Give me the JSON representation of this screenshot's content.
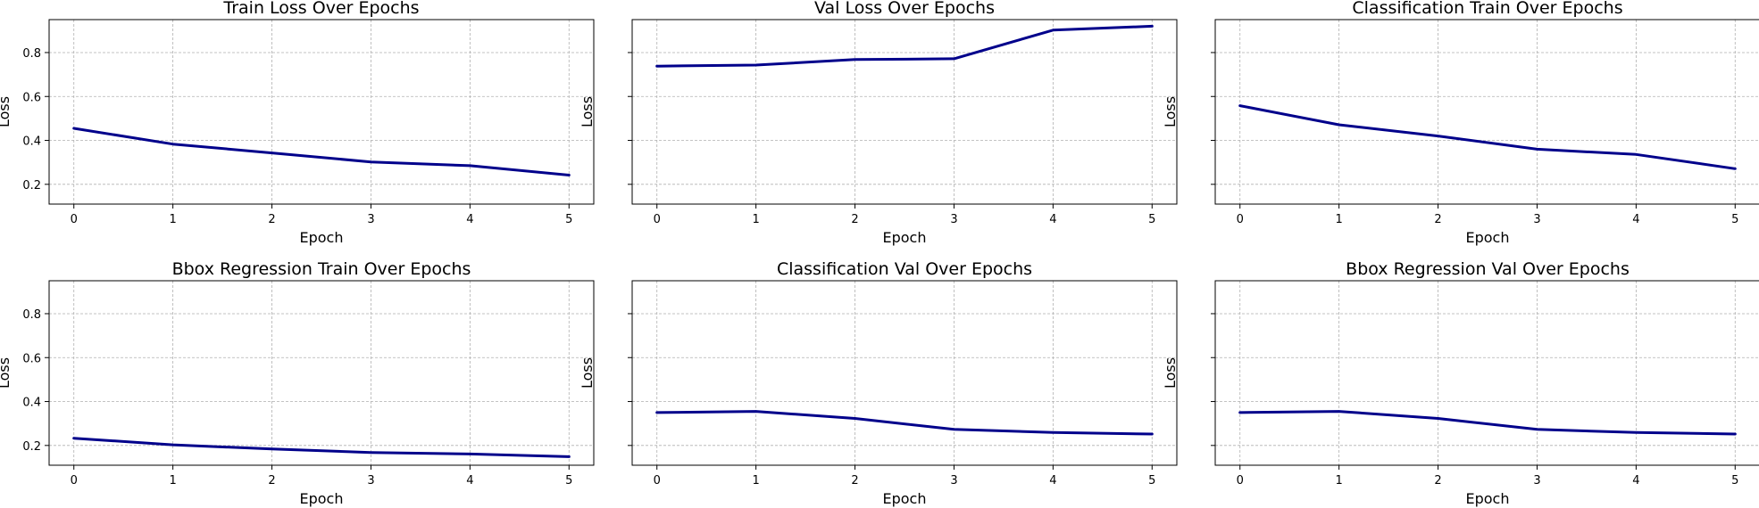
{
  "colors": {
    "line": "#00008b",
    "grid": "#b0b0b0",
    "axes": "#000000"
  },
  "chart_data": [
    {
      "type": "line",
      "title": "Train Loss Over Epochs",
      "xlabel": "Epoch",
      "ylabel": "Loss",
      "x": [
        0,
        1,
        2,
        3,
        4,
        5
      ],
      "values": [
        0.455,
        0.383,
        0.343,
        0.302,
        0.285,
        0.242
      ],
      "xticks": [
        "0",
        "1",
        "2",
        "3",
        "4",
        "5"
      ],
      "yticks": [
        "0.2",
        "0.4",
        "0.6",
        "0.8"
      ],
      "ylim": [
        0.11,
        0.95
      ],
      "xlim": [
        -0.25,
        5.25
      ],
      "grid": true
    },
    {
      "type": "line",
      "title": "Val Loss Over Epochs",
      "xlabel": "Epoch",
      "ylabel": "Loss",
      "x": [
        0,
        1,
        2,
        3,
        4,
        5
      ],
      "values": [
        0.738,
        0.743,
        0.768,
        0.772,
        0.902,
        0.92
      ],
      "xticks": [
        "0",
        "1",
        "2",
        "3",
        "4",
        "5"
      ],
      "yticks": [],
      "ylim": [
        0.11,
        0.95
      ],
      "xlim": [
        -0.25,
        5.25
      ],
      "grid": true
    },
    {
      "type": "line",
      "title": "Classification Train Over Epochs",
      "xlabel": "Epoch",
      "ylabel": "Loss",
      "x": [
        0,
        1,
        2,
        3,
        4,
        5
      ],
      "values": [
        0.558,
        0.471,
        0.42,
        0.36,
        0.336,
        0.271
      ],
      "xticks": [
        "0",
        "1",
        "2",
        "3",
        "4",
        "5"
      ],
      "yticks": [],
      "ylim": [
        0.11,
        0.95
      ],
      "xlim": [
        -0.25,
        5.25
      ],
      "grid": true
    },
    {
      "type": "line",
      "title": "Bbox Regression Train Over Epochs",
      "xlabel": "Epoch",
      "ylabel": "Loss",
      "x": [
        0,
        1,
        2,
        3,
        4,
        5
      ],
      "values": [
        0.233,
        0.203,
        0.184,
        0.168,
        0.161,
        0.149
      ],
      "xticks": [
        "0",
        "1",
        "2",
        "3",
        "4",
        "5"
      ],
      "yticks": [
        "0.2",
        "0.4",
        "0.6",
        "0.8"
      ],
      "ylim": [
        0.11,
        0.95
      ],
      "xlim": [
        -0.25,
        5.25
      ],
      "grid": true
    },
    {
      "type": "line",
      "title": "Classification Val Over Epochs",
      "xlabel": "Epoch",
      "ylabel": "Loss",
      "x": [
        0,
        1,
        2,
        3,
        4,
        5
      ],
      "values": [
        0.35,
        0.355,
        0.323,
        0.273,
        0.259,
        0.252
      ],
      "xticks": [
        "0",
        "1",
        "2",
        "3",
        "4",
        "5"
      ],
      "yticks": [],
      "ylim": [
        0.11,
        0.95
      ],
      "xlim": [
        -0.25,
        5.25
      ],
      "grid": true
    },
    {
      "type": "line",
      "title": "Bbox Regression Val Over Epochs",
      "xlabel": "Epoch",
      "ylabel": "Loss",
      "x": [
        0,
        1,
        2,
        3,
        4,
        5
      ],
      "values": [
        0.35,
        0.355,
        0.323,
        0.273,
        0.259,
        0.252
      ],
      "xticks": [
        "0",
        "1",
        "2",
        "3",
        "4",
        "5"
      ],
      "yticks": [],
      "ylim": [
        0.11,
        0.95
      ],
      "xlim": [
        -0.25,
        5.25
      ],
      "grid": true
    }
  ]
}
